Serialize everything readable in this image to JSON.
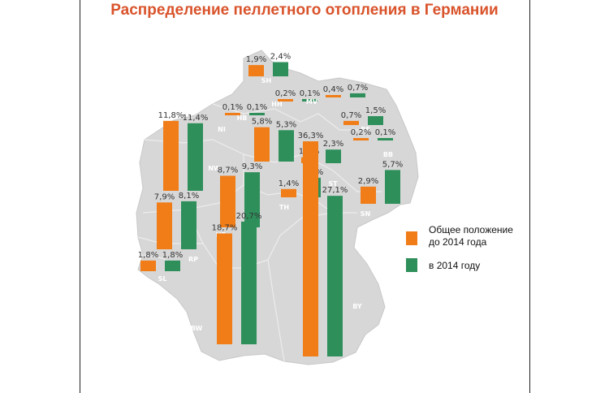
{
  "title": "Распределение пеллетного отопления в Германии",
  "colors": {
    "orange": "#f07d18",
    "green": "#2e8f5b",
    "map": "#d7d7d7",
    "title": "#d9532b"
  },
  "chart_data": {
    "type": "bar",
    "title": "Распределение пеллетного отопления в Германии",
    "unit": "%",
    "series": [
      {
        "name": "Общее положение до 2014 года",
        "color": "#f07d18"
      },
      {
        "name": "в 2014 году",
        "color": "#2e8f5b"
      }
    ],
    "categories": [
      "SH",
      "MV",
      "HB",
      "HH",
      "NI",
      "NW",
      "BB",
      "BE",
      "ST",
      "HE",
      "TH",
      "SN",
      "RP",
      "SL",
      "BW",
      "BY"
    ],
    "regions": [
      {
        "code": "SH",
        "values": [
          1.9,
          2.4
        ],
        "labels": [
          "1,9%",
          "2,4%"
        ]
      },
      {
        "code": "HH",
        "values": [
          0.2,
          0.1
        ],
        "labels": [
          "0,2%",
          "0,1%"
        ]
      },
      {
        "code": "HB",
        "values": [
          0.1,
          0.1
        ],
        "labels": [
          "0,1%",
          "0,1%"
        ]
      },
      {
        "code": "MV",
        "values": [
          0.4,
          0.7
        ],
        "labels": [
          "0,4%",
          "0,7%"
        ]
      },
      {
        "code": "BE",
        "values": [
          0.7,
          1.5
        ],
        "labels": [
          "0,7%",
          "1,5%"
        ]
      },
      {
        "code": "BB",
        "values": [
          0.2,
          0.1
        ],
        "labels": [
          "0,2%",
          "0,1%"
        ]
      },
      {
        "code": "NI",
        "values": [
          5.8,
          5.3
        ],
        "labels": [
          "5,8%",
          "5,3%"
        ]
      },
      {
        "code": "NW",
        "values": [
          11.8,
          11.4
        ],
        "labels": [
          "11,8%",
          "11,4%"
        ]
      },
      {
        "code": "ST",
        "values": [
          1.0,
          2.3
        ],
        "labels": [
          "1,0%",
          "2,3%"
        ]
      },
      {
        "code": "HE",
        "values": [
          8.7,
          9.3
        ],
        "labels": [
          "8,7%",
          "9,3%"
        ]
      },
      {
        "code": "TH",
        "values": [
          1.4,
          3.3
        ],
        "labels": [
          "1,4%",
          "3,3%"
        ]
      },
      {
        "code": "SN",
        "values": [
          2.9,
          5.7
        ],
        "labels": [
          "2,9%",
          "5,7%"
        ]
      },
      {
        "code": "RP",
        "values": [
          7.9,
          8.1
        ],
        "labels": [
          "7,9%",
          "8,1%"
        ]
      },
      {
        "code": "SL",
        "values": [
          1.8,
          1.8
        ],
        "labels": [
          "1,8%",
          "1,8%"
        ]
      },
      {
        "code": "BW",
        "values": [
          18.7,
          20.7
        ],
        "labels": [
          "18,7%",
          "20,7%"
        ]
      },
      {
        "code": "BY",
        "values": [
          36.3,
          27.1
        ],
        "labels": [
          "36,3%",
          "27,1%"
        ]
      }
    ]
  },
  "legend": {
    "items": [
      {
        "line1": "Общее положение",
        "line2": "до 2014 года",
        "color": "#f07d18"
      },
      {
        "line1": "в 2014 году",
        "line2": "",
        "color": "#2e8f5b"
      }
    ]
  }
}
